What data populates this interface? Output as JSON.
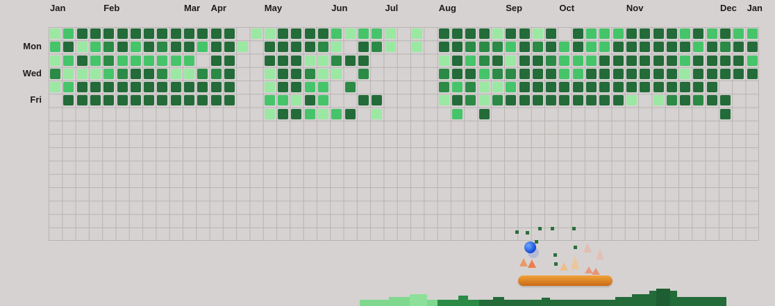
{
  "months": [
    {
      "label": "Jan",
      "col": 0
    },
    {
      "label": "Feb",
      "col": 4
    },
    {
      "label": "Mar",
      "col": 10
    },
    {
      "label": "Apr",
      "col": 12
    },
    {
      "label": "May",
      "col": 16
    },
    {
      "label": "Jun",
      "col": 21
    },
    {
      "label": "Jul",
      "col": 25
    },
    {
      "label": "Aug",
      "col": 29
    },
    {
      "label": "Sep",
      "col": 34
    },
    {
      "label": "Oct",
      "col": 38
    },
    {
      "label": "Nov",
      "col": 43
    },
    {
      "label": "Dec",
      "col": 50
    },
    {
      "label": "Jan",
      "col": 52
    }
  ],
  "days": [
    {
      "label": "Mon",
      "row": 1
    },
    {
      "label": "Wed",
      "row": 3
    },
    {
      "label": "Fri",
      "row": 5
    }
  ],
  "grid": {
    "cols": 53,
    "rows": 16,
    "colors": {
      "1": "#9be8a3",
      "2": "#45c46a",
      "3": "#2b8a45",
      "4": "#236b39",
      "5": "#f0800a"
    },
    "weeks": [
      "1213100",
      "2421240",
      "4141440",
      "4221440",
      "4332440",
      "4423440",
      "4224440",
      "4424440",
      "4323440",
      "4421440",
      "4421440",
      "4203440",
      "4443440",
      "4444440",
      "0100000",
      "1000000",
      "1441121",
      "4444424",
      "4444414",
      "4413242",
      "4311221",
      "2131002",
      "1040304",
      "2443040",
      "2300041",
      "1100000",
      "0000000",
      "1100000",
      "0000000",
      "4413310",
      "4444242",
      "4324330",
      "4332114",
      "1343130",
      "4213240",
      "4444440",
      "1344440",
      "4434440",
      "0222440",
      "4422440",
      "2224440",
      "2244440",
      "2444440",
      "4444410",
      "4444400",
      "4444410",
      "4444430",
      "2421440",
      "4244430",
      "2444440",
      "4344044",
      "2444000",
      "2424000"
    ]
  }
}
